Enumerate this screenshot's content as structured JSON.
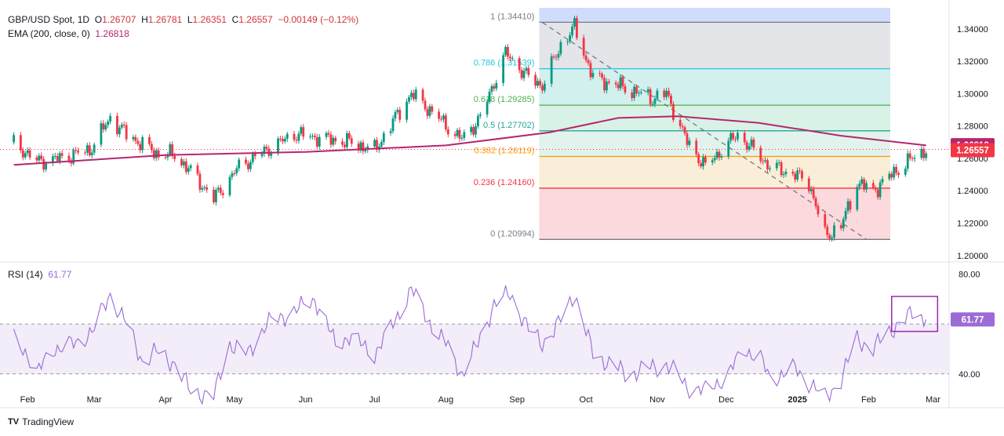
{
  "header": {
    "symbol": "GBP/USD Spot, 1D",
    "open_label": "O",
    "open": "1.26707",
    "high_label": "H",
    "high": "1.26781",
    "low_label": "L",
    "low": "1.26351",
    "close_label": "C",
    "close": "1.26557",
    "change": "−0.00149 (−0.12%)",
    "ema_label": "EMA (200, close, 0)",
    "ema_value": "1.26818"
  },
  "rsi_header": {
    "label": "RSI (14)",
    "value": "61.77"
  },
  "footer": {
    "brand": "TradingView"
  },
  "colors": {
    "up": "#089981",
    "down": "#f23645",
    "ema": "#b5266e",
    "rsi": "#9b6bd6",
    "price_badge": "#f23645",
    "ema_badge": "#b5266e",
    "rsi_badge": "#9b6bd6",
    "highlight_box": "#9c27b0"
  },
  "chart_data": {
    "type": "candlestick",
    "title": "GBP/USD Spot, 1D",
    "price_axis": {
      "ticks": [
        "1.34000",
        "1.32000",
        "1.30000",
        "1.28000",
        "1.26000",
        "1.24000",
        "1.22000",
        "1.20000"
      ],
      "ylim": [
        1.197,
        1.353
      ]
    },
    "time_axis": {
      "ticks": [
        "Feb",
        "Mar",
        "Apr",
        "May",
        "Jun",
        "Jul",
        "Aug",
        "Sep",
        "Oct",
        "Nov",
        "Dec",
        "2025",
        "Feb",
        "Mar"
      ]
    },
    "price_path": [
      [
        "2024-01-26",
        1.27
      ],
      [
        "2024-02-05",
        1.258
      ],
      [
        "2024-02-15",
        1.26
      ],
      [
        "2024-02-28",
        1.265
      ],
      [
        "2024-03-08",
        1.285
      ],
      [
        "2024-03-15",
        1.275
      ],
      [
        "2024-03-28",
        1.263
      ],
      [
        "2024-04-05",
        1.262
      ],
      [
        "2024-04-12",
        1.252
      ],
      [
        "2024-04-22",
        1.235
      ],
      [
        "2024-05-03",
        1.255
      ],
      [
        "2024-05-15",
        1.265
      ],
      [
        "2024-05-27",
        1.275
      ],
      [
        "2024-06-10",
        1.272
      ],
      [
        "2024-06-20",
        1.27
      ],
      [
        "2024-07-01",
        1.265
      ],
      [
        "2024-07-10",
        1.285
      ],
      [
        "2024-07-17",
        1.3
      ],
      [
        "2024-07-25",
        1.29
      ],
      [
        "2024-08-05",
        1.275
      ],
      [
        "2024-08-08",
        1.272
      ],
      [
        "2024-08-16",
        1.285
      ],
      [
        "2024-08-27",
        1.325
      ],
      [
        "2024-09-06",
        1.31
      ],
      [
        "2024-09-12",
        1.305
      ],
      [
        "2024-09-20",
        1.33
      ],
      [
        "2024-09-26",
        1.341
      ],
      [
        "2024-10-04",
        1.31
      ],
      [
        "2024-10-15",
        1.305
      ],
      [
        "2024-10-30",
        1.297
      ],
      [
        "2024-11-05",
        1.3
      ],
      [
        "2024-11-14",
        1.27
      ],
      [
        "2024-11-22",
        1.255
      ],
      [
        "2024-12-06",
        1.275
      ],
      [
        "2024-12-13",
        1.265
      ],
      [
        "2024-12-20",
        1.255
      ],
      [
        "2024-12-31",
        1.25
      ],
      [
        "2025-01-06",
        1.245
      ],
      [
        "2025-01-13",
        1.212
      ],
      [
        "2025-01-20",
        1.218
      ],
      [
        "2025-01-27",
        1.245
      ],
      [
        "2025-02-03",
        1.24
      ],
      [
        "2025-02-11",
        1.25
      ],
      [
        "2025-02-18",
        1.258
      ],
      [
        "2025-02-26",
        1.2656
      ]
    ],
    "ema_200": {
      "label": "EMA (200, close, 0)",
      "last": 1.26818,
      "path": [
        [
          "2024-01-26",
          1.256
        ],
        [
          "2024-04-01",
          1.262
        ],
        [
          "2024-06-01",
          1.264
        ],
        [
          "2024-08-01",
          1.268
        ],
        [
          "2024-09-15",
          1.276
        ],
        [
          "2024-10-15",
          1.285
        ],
        [
          "2024-11-10",
          1.286
        ],
        [
          "2024-12-15",
          1.282
        ],
        [
          "2025-01-20",
          1.274
        ],
        [
          "2025-02-26",
          1.268
        ]
      ]
    },
    "last_price": 1.26557,
    "fibonacci": {
      "from": {
        "date": "2024-09-26",
        "price": 1.3441
      },
      "to": {
        "date": "2025-01-13",
        "price": 1.20994
      },
      "levels": [
        {
          "ratio": "1",
          "price": 1.3441,
          "label": "1 (1.34410)"
        },
        {
          "ratio": "0.786",
          "price": 1.31539,
          "label": "0.786 (1.31539)"
        },
        {
          "ratio": "0.618",
          "price": 1.29285,
          "label": "0.618 (1.29285)"
        },
        {
          "ratio": "0.5",
          "price": 1.27702,
          "label": "0.5 (1.27702)"
        },
        {
          "ratio": "0.382",
          "price": 1.26119,
          "label": "0.382 (1.26119)"
        },
        {
          "ratio": "0.236",
          "price": 1.2416,
          "label": "0.236 (1.24160)"
        },
        {
          "ratio": "0",
          "price": 1.20994,
          "label": "0 (1.20994)"
        }
      ]
    },
    "trendline": {
      "from": [
        "2024-09-12",
        1.344
      ],
      "to": [
        "2025-01-31",
        1.21
      ]
    },
    "rsi": {
      "label": "RSI (14)",
      "last": 61.77,
      "axis_ticks": [
        "80.00",
        "40.00"
      ],
      "ylim": [
        28,
        82
      ],
      "band": [
        40,
        60
      ],
      "path": [
        [
          "2024-01-26",
          54
        ],
        [
          "2024-02-01",
          48
        ],
        [
          "2024-02-05",
          40
        ],
        [
          "2024-02-12",
          50
        ],
        [
          "2024-02-22",
          52
        ],
        [
          "2024-03-01",
          58
        ],
        [
          "2024-03-08",
          72
        ],
        [
          "2024-03-15",
          60
        ],
        [
          "2024-03-22",
          45
        ],
        [
          "2024-03-28",
          49
        ],
        [
          "2024-04-05",
          44
        ],
        [
          "2024-04-12",
          33
        ],
        [
          "2024-04-22",
          31
        ],
        [
          "2024-04-29",
          52
        ],
        [
          "2024-05-07",
          48
        ],
        [
          "2024-05-15",
          60
        ],
        [
          "2024-05-27",
          65
        ],
        [
          "2024-06-05",
          70
        ],
        [
          "2024-06-14",
          52
        ],
        [
          "2024-06-20",
          55
        ],
        [
          "2024-07-01",
          48
        ],
        [
          "2024-07-08",
          58
        ],
        [
          "2024-07-17",
          74
        ],
        [
          "2024-07-24",
          62
        ],
        [
          "2024-08-01",
          52
        ],
        [
          "2024-08-08",
          40
        ],
        [
          "2024-08-15",
          52
        ],
        [
          "2024-08-22",
          68
        ],
        [
          "2024-08-29",
          72
        ],
        [
          "2024-09-06",
          58
        ],
        [
          "2024-09-12",
          52
        ],
        [
          "2024-09-19",
          60
        ],
        [
          "2024-09-26",
          72
        ],
        [
          "2024-10-04",
          48
        ],
        [
          "2024-10-10",
          45
        ],
        [
          "2024-10-18",
          40
        ],
        [
          "2024-10-28",
          42
        ],
        [
          "2024-11-05",
          44
        ],
        [
          "2024-11-14",
          35
        ],
        [
          "2024-11-22",
          33
        ],
        [
          "2024-12-02",
          40
        ],
        [
          "2024-12-09",
          50
        ],
        [
          "2024-12-16",
          46
        ],
        [
          "2024-12-20",
          38
        ],
        [
          "2024-12-31",
          42
        ],
        [
          "2025-01-07",
          36
        ],
        [
          "2025-01-13",
          30
        ],
        [
          "2025-01-20",
          38
        ],
        [
          "2025-01-27",
          54
        ],
        [
          "2025-02-03",
          50
        ],
        [
          "2025-02-10",
          57
        ],
        [
          "2025-02-14",
          60
        ],
        [
          "2025-02-20",
          64
        ],
        [
          "2025-02-26",
          61.77
        ]
      ]
    }
  }
}
